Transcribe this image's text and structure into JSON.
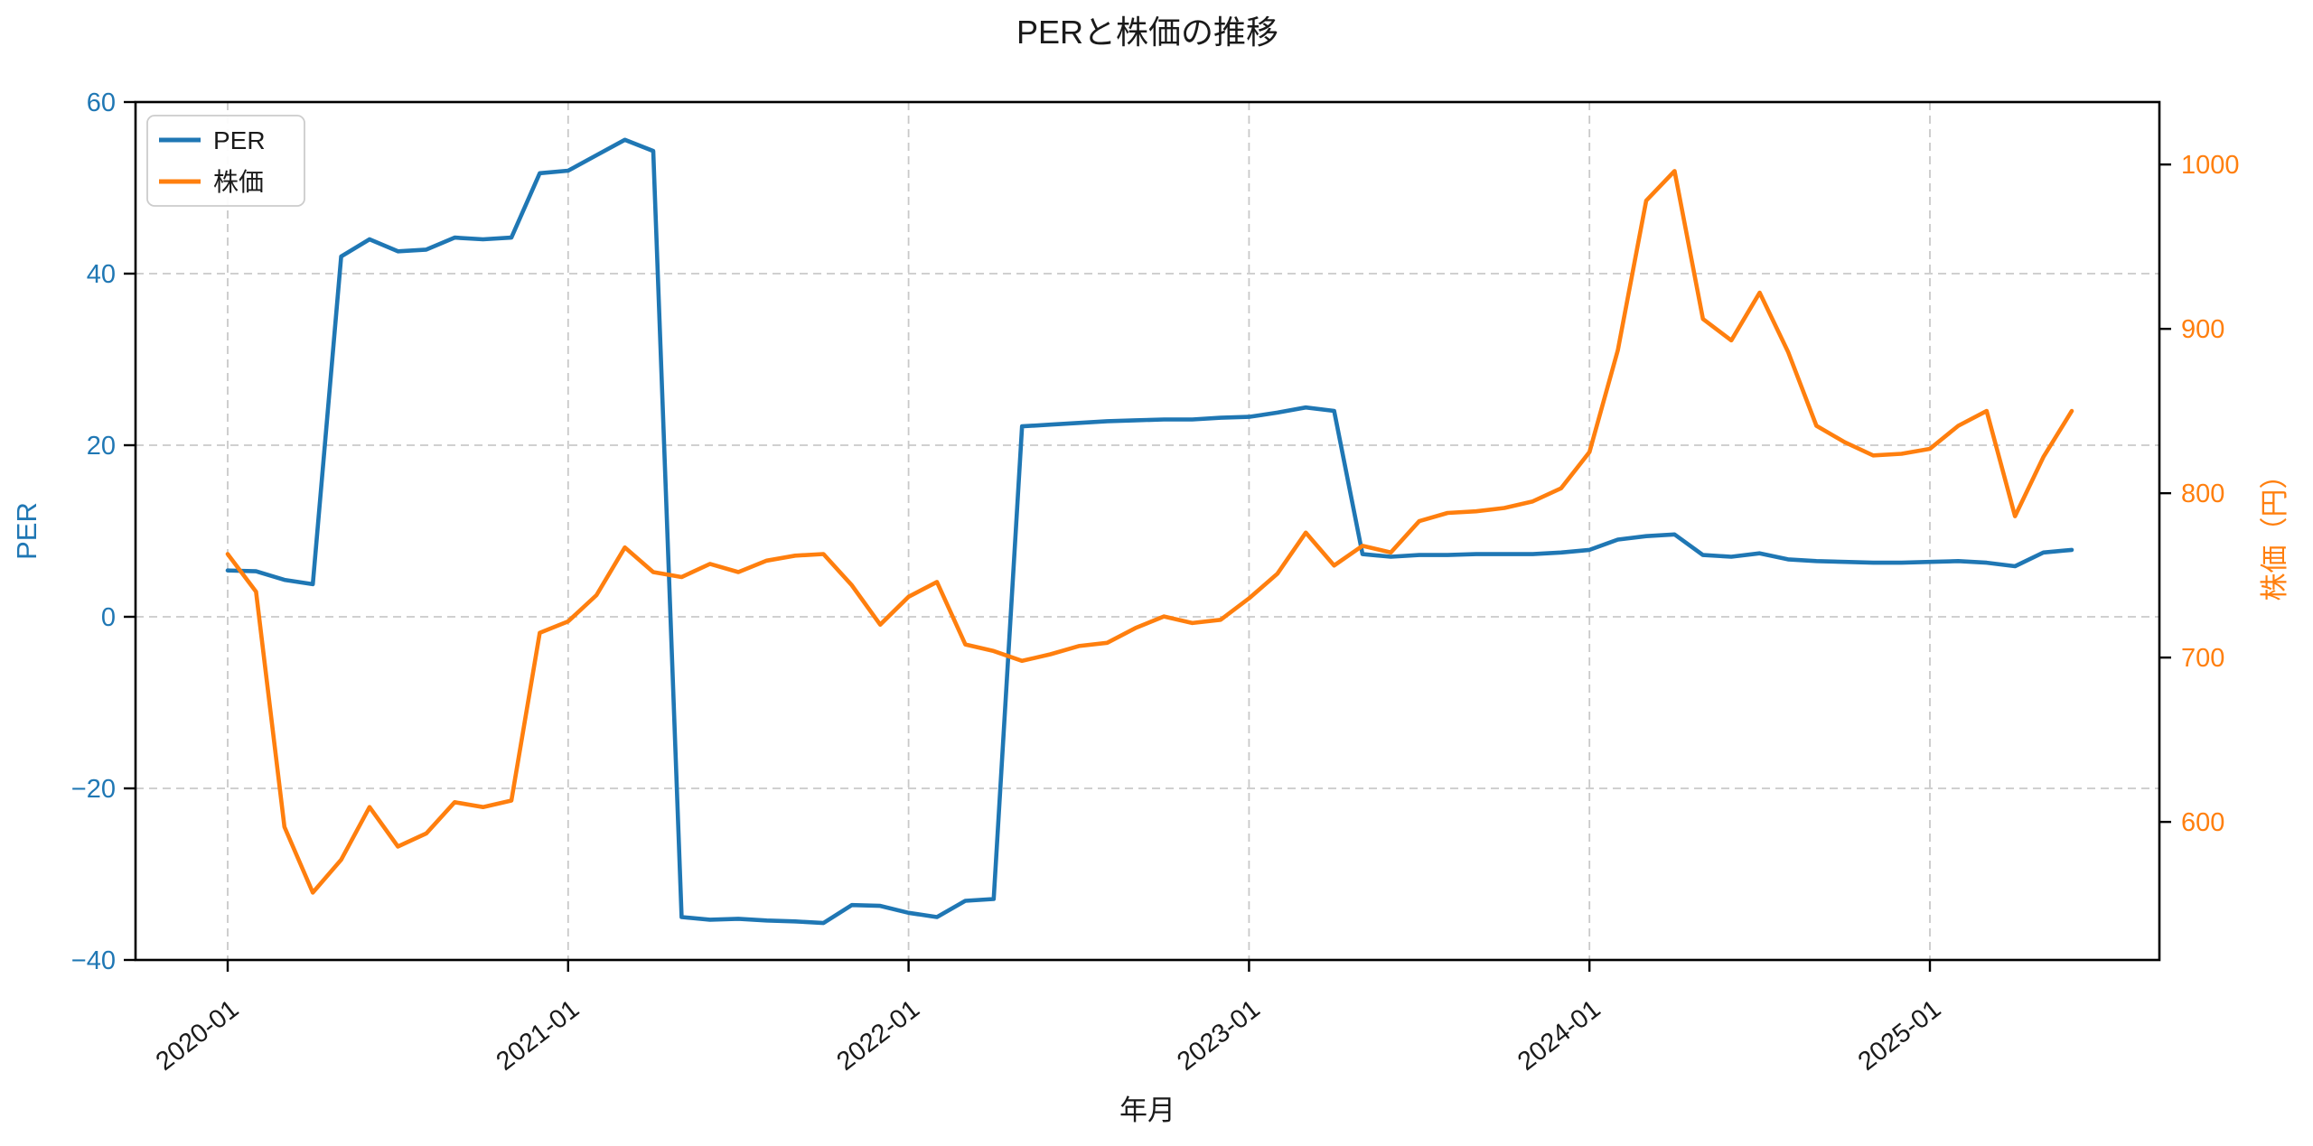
{
  "title": "PERと株価の推移",
  "legend": {
    "items": [
      {
        "label": "PER",
        "color": "#1f77b4"
      },
      {
        "label": "株価",
        "color": "#ff7f0e"
      }
    ]
  },
  "axes": {
    "x_label": "年月",
    "y_left_label": "PER",
    "y_left_color": "#1f77b4",
    "y_right_label": "株価（円）",
    "y_right_color": "#ff7f0e",
    "x_tick_labels": [
      "2020-01",
      "2021-01",
      "2022-01",
      "2023-01",
      "2024-01",
      "2025-01"
    ],
    "x_tick_month_index": [
      0,
      12,
      24,
      36,
      48,
      60
    ],
    "y_left_tick_labels": [
      "60",
      "40",
      "20",
      "0",
      "−20",
      "−40"
    ],
    "y_left_tick_values": [
      60,
      40,
      20,
      0,
      -20,
      -40
    ],
    "y_right_tick_labels": [
      "1000",
      "900",
      "800",
      "700",
      "600"
    ],
    "y_right_tick_values": [
      1000,
      900,
      800,
      700,
      600
    ]
  },
  "chart_data": {
    "type": "line",
    "title": "PERと株価の推移",
    "xlabel": "年月",
    "ylabel_left": "PER",
    "ylabel_right": "株価（円）",
    "ylim_left": [
      -40,
      60
    ],
    "ylim_right": [
      516,
      1038
    ],
    "grid": true,
    "grid_style": "dashed",
    "legend_position": "upper left",
    "x": [
      "2020-01",
      "2020-02",
      "2020-03",
      "2020-04",
      "2020-05",
      "2020-06",
      "2020-07",
      "2020-08",
      "2020-09",
      "2020-10",
      "2020-11",
      "2020-12",
      "2021-01",
      "2021-02",
      "2021-03",
      "2021-04",
      "2021-05",
      "2021-06",
      "2021-07",
      "2021-08",
      "2021-09",
      "2021-10",
      "2021-11",
      "2021-12",
      "2022-01",
      "2022-02",
      "2022-03",
      "2022-04",
      "2022-05",
      "2022-06",
      "2022-07",
      "2022-08",
      "2022-09",
      "2022-10",
      "2022-11",
      "2022-12",
      "2023-01",
      "2023-02",
      "2023-03",
      "2023-04",
      "2023-05",
      "2023-06",
      "2023-07",
      "2023-08",
      "2023-09",
      "2023-10",
      "2023-11",
      "2023-12",
      "2024-01",
      "2024-02",
      "2024-03",
      "2024-04",
      "2024-05",
      "2024-06",
      "2024-07",
      "2024-08",
      "2024-09",
      "2024-10",
      "2024-11",
      "2024-12",
      "2025-01",
      "2025-02",
      "2025-03",
      "2025-04",
      "2025-05",
      "2025-06"
    ],
    "series": [
      {
        "name": "PER",
        "axis": "left",
        "color": "#1f77b4",
        "values": [
          5.4,
          5.3,
          4.3,
          3.8,
          42.0,
          44.0,
          42.6,
          42.8,
          44.2,
          44.0,
          44.2,
          51.7,
          52.0,
          53.8,
          55.6,
          54.3,
          -35.0,
          -35.3,
          -35.2,
          -35.4,
          -35.5,
          -35.7,
          -33.6,
          -33.7,
          -34.5,
          -35.0,
          -33.1,
          -32.9,
          22.2,
          22.4,
          22.6,
          22.8,
          22.9,
          23.0,
          23.0,
          23.2,
          23.3,
          23.8,
          24.4,
          24.0,
          7.3,
          7.0,
          7.2,
          7.2,
          7.3,
          7.3,
          7.3,
          7.5,
          7.8,
          9.0,
          9.4,
          9.6,
          7.2,
          7.0,
          7.4,
          6.7,
          6.5,
          6.4,
          6.3,
          6.3,
          6.4,
          6.5,
          6.3,
          5.9,
          7.5,
          7.8
        ]
      },
      {
        "name": "株価",
        "axis": "right",
        "color": "#ff7f0e",
        "values": [
          763,
          740,
          597,
          557,
          577,
          609,
          585,
          593,
          612,
          609,
          613,
          715,
          722,
          738,
          767,
          752,
          749,
          757,
          752,
          759,
          762,
          763,
          744,
          720,
          737,
          746,
          708,
          704,
          698,
          702,
          707,
          709,
          718,
          725,
          721,
          723,
          736,
          751,
          776,
          756,
          768,
          764,
          783,
          788,
          789,
          791,
          795,
          803,
          825,
          887,
          978,
          996,
          906,
          893,
          922,
          886,
          841,
          831,
          823,
          824,
          827,
          841,
          850,
          786,
          822,
          850
        ]
      }
    ]
  }
}
